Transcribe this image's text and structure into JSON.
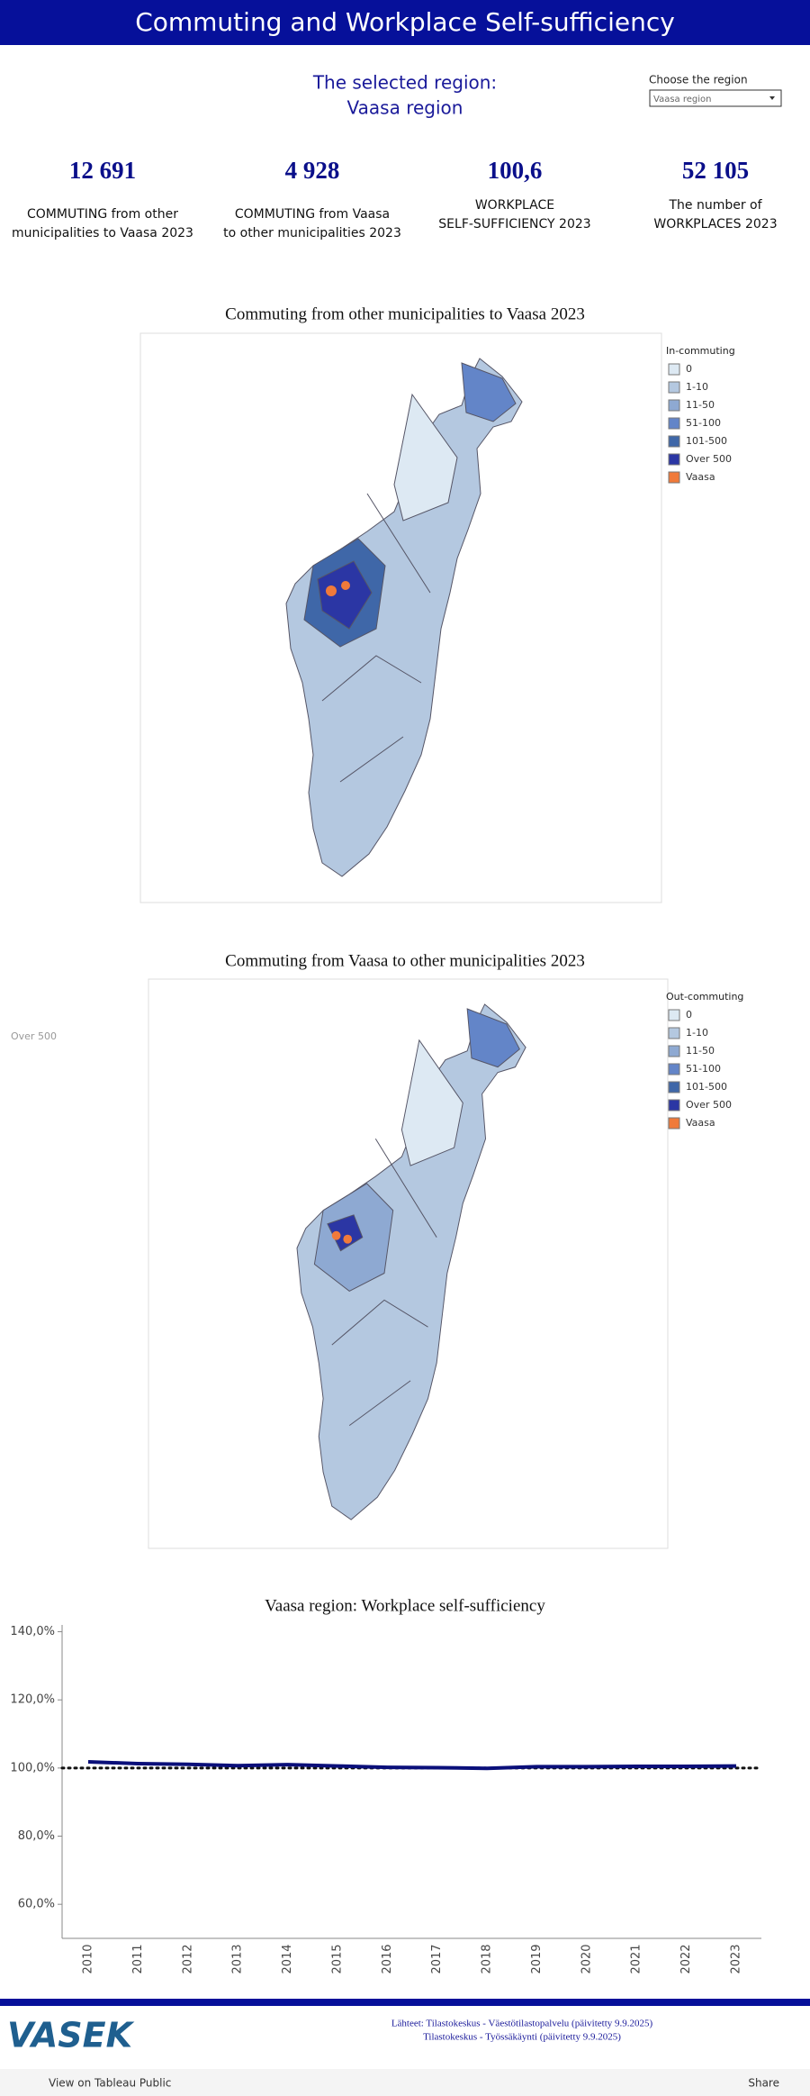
{
  "header": {
    "title": "Commuting and Workplace Self-sufficiency"
  },
  "selected": {
    "caption": "The selected region:",
    "region": "Vaasa region"
  },
  "selector": {
    "label": "Choose the region",
    "value": "Vaasa region"
  },
  "kpis": [
    {
      "value": "12 691",
      "label_lines": [
        "COMMUTING from other",
        "municipalities to Vaasa 2023"
      ]
    },
    {
      "value": "4 928",
      "label_lines": [
        "COMMUTING from Vaasa",
        "to other municipalities 2023"
      ]
    },
    {
      "value": "100,6",
      "label_lines": [
        "WORKPLACE",
        "SELF-SUFFICIENCY 2023"
      ]
    },
    {
      "value": "52 105",
      "label_lines": [
        "The number of",
        "WORKPLACES 2023"
      ]
    }
  ],
  "maps": [
    {
      "title": "Commuting from other municipalities to Vaasa 2023",
      "legend_title": "In-commuting",
      "legend": [
        {
          "label": "0",
          "color": "#dde9f3"
        },
        {
          "label": "1-10",
          "color": "#b4c8e0"
        },
        {
          "label": "11-50",
          "color": "#8ea9d2"
        },
        {
          "label": "51-100",
          "color": "#6385c8"
        },
        {
          "label": "101-500",
          "color": "#3f67a8"
        },
        {
          "label": "Over 500",
          "color": "#2b36a4"
        },
        {
          "label": "Vaasa",
          "color": "#f07a3a"
        }
      ]
    },
    {
      "title": "Commuting from Vaasa to other municipalities 2023",
      "legend_title": "Out-commuting",
      "legend": [
        {
          "label": "0",
          "color": "#dde9f3"
        },
        {
          "label": "1-10",
          "color": "#b4c8e0"
        },
        {
          "label": "11-50",
          "color": "#8ea9d2"
        },
        {
          "label": "51-100",
          "color": "#6385c8"
        },
        {
          "label": "101-500",
          "color": "#3f67a8"
        },
        {
          "label": "Over 500",
          "color": "#2b36a4"
        },
        {
          "label": "Vaasa",
          "color": "#f07a3a"
        }
      ]
    }
  ],
  "stray_label": "Over 500",
  "chart_data": {
    "type": "line",
    "title": "Vaasa region: Workplace self-sufficiency",
    "categories": [
      "2010",
      "2011",
      "2012",
      "2013",
      "2014",
      "2015",
      "2016",
      "2017",
      "2018",
      "2019",
      "2020",
      "2021",
      "2022",
      "2023"
    ],
    "values": [
      101.8,
      101.3,
      101.1,
      100.7,
      101.0,
      100.6,
      100.2,
      100.1,
      99.9,
      100.4,
      100.4,
      100.5,
      100.5,
      100.6
    ],
    "color": "#0a0f7a",
    "reference_line": 100,
    "ylim": [
      50,
      142
    ],
    "yticks": [
      {
        "value": 60,
        "label": "60,0%"
      },
      {
        "value": 80,
        "label": "80,0%"
      },
      {
        "value": 100,
        "label": "100,0%"
      },
      {
        "value": 120,
        "label": "120,0%"
      },
      {
        "value": 140,
        "label": "140,0%"
      }
    ]
  },
  "footer": {
    "logo": "VASEK",
    "sources": [
      "Lähteet: Tilastokeskus - Väestötilastopalvelu (päivitetty 9.9.2025)",
      "Tilastokeskus - Työssäkäynti (päivitetty 9.9.2025)"
    ]
  },
  "toolbar": {
    "view": "View on Tableau Public",
    "share": "Share"
  }
}
